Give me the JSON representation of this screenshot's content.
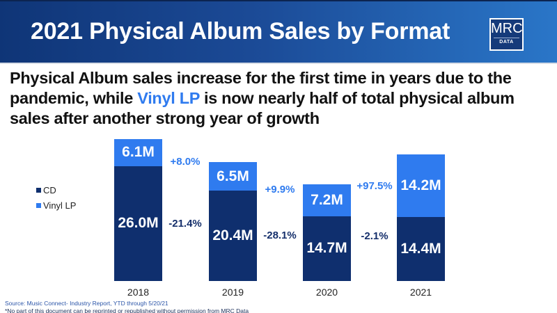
{
  "header": {
    "title": "2021 Physical Album Sales by Format",
    "logo_main": "MRC",
    "logo_sub": "DATA"
  },
  "subtitle": {
    "part1": "Physical Album sales increase for the first time in years due to the pandemic, while ",
    "highlight": "Vinyl LP",
    "part2": " is now nearly half of total physical album sales after another strong year of growth"
  },
  "colors": {
    "cd": "#0f2f6e",
    "vinyl": "#2f7bef",
    "positive_change": "#2f7bef",
    "negative_change": "#152f6b"
  },
  "chart_data": {
    "type": "bar",
    "stacked": true,
    "title": "2021 Physical Album Sales by Format",
    "categories": [
      "2018",
      "2019",
      "2020",
      "2021"
    ],
    "series": [
      {
        "name": "CD",
        "values": [
          26.0,
          20.4,
          14.7,
          14.4
        ],
        "labels": [
          "26.0M",
          "20.4M",
          "14.7M",
          "14.4M"
        ]
      },
      {
        "name": "Vinyl LP",
        "values": [
          6.1,
          6.5,
          7.2,
          14.2
        ],
        "labels": [
          "6.1M",
          "6.5M",
          "7.2M",
          "14.2M"
        ]
      }
    ],
    "changes": {
      "vinyl": [
        "+8.0%",
        "+9.9%",
        "+97.5%"
      ],
      "cd": [
        "-21.4%",
        "-28.1%",
        "-2.1%"
      ]
    },
    "legend": [
      "CD",
      "Vinyl LP"
    ],
    "legend_position": "left",
    "unit": "M",
    "grid": false,
    "xlabel": "",
    "ylabel": ""
  },
  "legend": {
    "items": [
      {
        "label": "CD"
      },
      {
        "label": "Vinyl LP"
      }
    ]
  },
  "footer": {
    "source": "Source: Music Connect- Industry Report, YTD through 5/20/21",
    "note": "*No part of this document can be reprinted or republished without permission from MRC Data"
  }
}
